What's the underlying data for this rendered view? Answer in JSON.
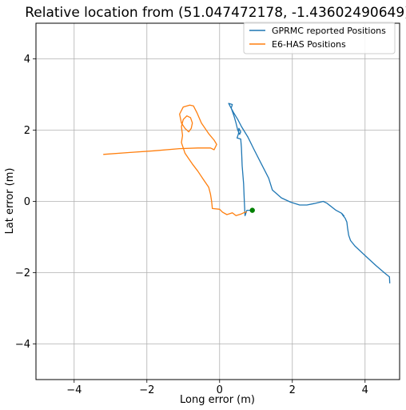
{
  "chart_data": {
    "type": "line",
    "title": "Relative location from (51.047472178, -1.43602490649)",
    "xlabel": "Long error (m)",
    "ylabel": "Lat error (m)",
    "xlim": [
      -5.05,
      4.95
    ],
    "ylim": [
      -5.0,
      5.0
    ],
    "x_ticks": [
      -4,
      -2,
      0,
      2,
      4
    ],
    "y_ticks": [
      -4,
      -2,
      0,
      2,
      4
    ],
    "x_tick_labels": [
      "−4",
      "−2",
      "0",
      "2",
      "4"
    ],
    "y_tick_labels": [
      "−4",
      "−2",
      "0",
      "2",
      "4"
    ],
    "grid": true,
    "legend_position": "top-right",
    "series": [
      {
        "name": "GPRMC reported Positions",
        "color": "#1f77b4",
        "points": [
          [
            4.68,
            -2.3
          ],
          [
            4.67,
            -2.12
          ],
          [
            4.55,
            -2.02
          ],
          [
            4.3,
            -1.8
          ],
          [
            4.0,
            -1.52
          ],
          [
            3.72,
            -1.25
          ],
          [
            3.6,
            -1.1
          ],
          [
            3.55,
            -0.95
          ],
          [
            3.52,
            -0.75
          ],
          [
            3.5,
            -0.58
          ],
          [
            3.45,
            -0.47
          ],
          [
            3.38,
            -0.38
          ],
          [
            3.36,
            -0.34
          ],
          [
            3.42,
            -0.41
          ],
          [
            3.35,
            -0.33
          ],
          [
            3.2,
            -0.25
          ],
          [
            2.95,
            -0.05
          ],
          [
            2.85,
            0.0
          ],
          [
            2.6,
            -0.06
          ],
          [
            2.4,
            -0.1
          ],
          [
            2.2,
            -0.1
          ],
          [
            1.95,
            -0.02
          ],
          [
            1.7,
            0.1
          ],
          [
            1.45,
            0.32
          ],
          [
            1.35,
            0.65
          ],
          [
            1.15,
            1.05
          ],
          [
            0.95,
            1.45
          ],
          [
            0.78,
            1.8
          ],
          [
            0.6,
            2.1
          ],
          [
            0.5,
            2.3
          ],
          [
            0.38,
            2.5
          ],
          [
            0.3,
            2.65
          ],
          [
            0.25,
            2.75
          ],
          [
            0.35,
            2.72
          ],
          [
            0.32,
            2.62
          ],
          [
            0.4,
            2.38
          ],
          [
            0.45,
            2.2
          ],
          [
            0.5,
            2.0
          ],
          [
            0.55,
            1.88
          ],
          [
            0.58,
            1.95
          ],
          [
            0.53,
            2.05
          ],
          [
            0.52,
            1.9
          ],
          [
            0.48,
            1.78
          ],
          [
            0.58,
            1.75
          ],
          [
            0.6,
            1.5
          ],
          [
            0.62,
            1.0
          ],
          [
            0.66,
            0.5
          ],
          [
            0.68,
            0.0
          ],
          [
            0.7,
            -0.4
          ],
          [
            0.75,
            -0.25
          ],
          [
            0.9,
            -0.25
          ]
        ]
      },
      {
        "name": "E6-HAS Positions",
        "color": "#ff7f0e",
        "points": [
          [
            -3.2,
            1.32
          ],
          [
            -2.5,
            1.37
          ],
          [
            -1.8,
            1.42
          ],
          [
            -1.1,
            1.48
          ],
          [
            -0.6,
            1.5
          ],
          [
            -0.25,
            1.5
          ],
          [
            -0.15,
            1.45
          ],
          [
            -0.08,
            1.6
          ],
          [
            -0.15,
            1.72
          ],
          [
            -0.3,
            1.9
          ],
          [
            -0.5,
            2.2
          ],
          [
            -0.62,
            2.48
          ],
          [
            -0.72,
            2.68
          ],
          [
            -0.82,
            2.7
          ],
          [
            -1.0,
            2.65
          ],
          [
            -1.1,
            2.45
          ],
          [
            -1.05,
            2.2
          ],
          [
            -0.95,
            2.05
          ],
          [
            -0.85,
            1.95
          ],
          [
            -0.78,
            2.05
          ],
          [
            -0.75,
            2.2
          ],
          [
            -0.8,
            2.35
          ],
          [
            -0.9,
            2.4
          ],
          [
            -1.0,
            2.3
          ],
          [
            -1.05,
            2.1
          ],
          [
            -1.02,
            1.85
          ],
          [
            -1.05,
            1.65
          ],
          [
            -1.0,
            1.5
          ],
          [
            -0.95,
            1.35
          ],
          [
            -0.85,
            1.2
          ],
          [
            -0.75,
            1.05
          ],
          [
            -0.6,
            0.85
          ],
          [
            -0.45,
            0.62
          ],
          [
            -0.3,
            0.4
          ],
          [
            -0.25,
            0.2
          ],
          [
            -0.22,
            0.0
          ],
          [
            -0.2,
            -0.2
          ],
          [
            0.0,
            -0.22
          ],
          [
            0.08,
            -0.3
          ],
          [
            0.2,
            -0.37
          ],
          [
            0.35,
            -0.32
          ],
          [
            0.45,
            -0.4
          ],
          [
            0.6,
            -0.35
          ],
          [
            0.7,
            -0.3
          ],
          [
            0.75,
            -0.3
          ]
        ]
      }
    ],
    "marker": {
      "x": 0.9,
      "y": -0.25,
      "color": "#008000"
    }
  }
}
